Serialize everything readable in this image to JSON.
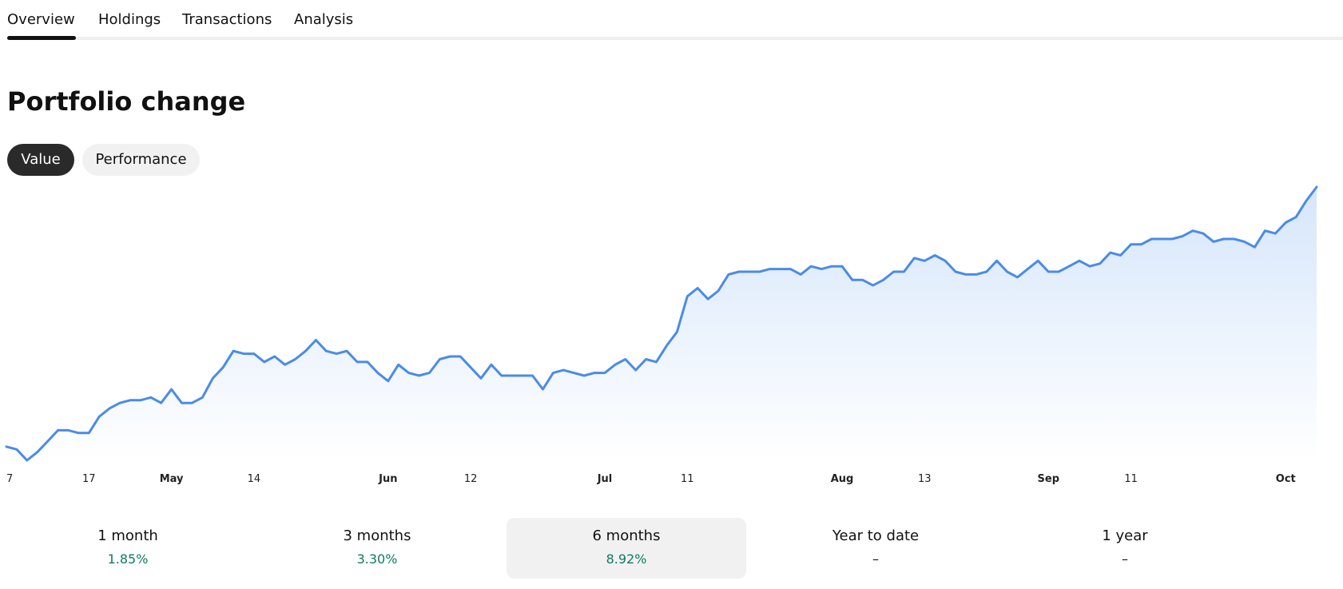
{
  "tabs": [
    {
      "label": "Overview",
      "active": true
    },
    {
      "label": "Holdings",
      "active": false
    },
    {
      "label": "Transactions",
      "active": false
    },
    {
      "label": "Analysis",
      "active": false
    }
  ],
  "title": "Portfolio change",
  "toggle": {
    "value_label": "Value",
    "performance_label": "Performance",
    "active": "Value"
  },
  "colors": {
    "line": "#4a8be8",
    "fill_top": "#d6e6fb",
    "positive": "#0f7a5f",
    "active_pill": "#2a2a2a"
  },
  "chart_data": {
    "type": "area",
    "title": "",
    "xlabel": "",
    "ylabel": "",
    "grid": false,
    "legend": "none",
    "ticks": [
      {
        "label": "7",
        "month": false,
        "index": 0
      },
      {
        "label": "17",
        "month": false,
        "index": 8
      },
      {
        "label": "May",
        "month": true,
        "index": 16
      },
      {
        "label": "14",
        "month": false,
        "index": 24
      },
      {
        "label": "Jun",
        "month": true,
        "index": 37
      },
      {
        "label": "12",
        "month": false,
        "index": 45
      },
      {
        "label": "Jul",
        "month": true,
        "index": 58
      },
      {
        "label": "11",
        "month": false,
        "index": 66
      },
      {
        "label": "Aug",
        "month": true,
        "index": 81
      },
      {
        "label": "13",
        "month": false,
        "index": 89
      },
      {
        "label": "Sep",
        "month": true,
        "index": 101
      },
      {
        "label": "11",
        "month": false,
        "index": 109
      },
      {
        "label": "Oct",
        "month": true,
        "index": 124
      }
    ],
    "ylim": [
      0,
      100
    ],
    "series": [
      {
        "values": [
          5,
          4,
          0,
          3,
          7,
          11,
          11,
          10,
          10,
          16,
          19,
          21,
          22,
          22,
          23,
          21,
          26,
          21,
          21,
          23,
          30,
          34,
          40,
          39,
          39,
          36,
          38,
          35,
          37,
          40,
          44,
          40,
          39,
          40,
          36,
          36,
          32,
          29,
          35,
          32,
          31,
          32,
          37,
          38,
          38,
          34,
          30,
          35,
          31,
          31,
          31,
          31,
          26,
          32,
          33,
          32,
          31,
          32,
          32,
          35,
          37,
          33,
          37,
          36,
          42,
          47,
          60,
          63,
          59,
          62,
          68,
          69,
          69,
          69,
          70,
          70,
          70,
          68,
          71,
          70,
          71,
          71,
          66,
          66,
          64,
          66,
          69,
          69,
          74,
          73,
          75,
          73,
          69,
          68,
          68,
          69,
          73,
          69,
          67,
          70,
          73,
          69,
          69,
          71,
          73,
          71,
          72,
          76,
          75,
          79,
          79,
          81,
          81,
          81,
          82,
          84,
          83,
          80,
          81,
          81,
          80,
          78,
          84,
          83,
          87,
          89,
          95,
          100
        ]
      }
    ]
  },
  "periods": [
    {
      "label": "1 month",
      "value": "1.85%",
      "selected": false
    },
    {
      "label": "3 months",
      "value": "3.30%",
      "selected": false
    },
    {
      "label": "6 months",
      "value": "8.92%",
      "selected": true
    },
    {
      "label": "Year to date",
      "value": "–",
      "selected": false
    },
    {
      "label": "1 year",
      "value": "–",
      "selected": false
    }
  ]
}
